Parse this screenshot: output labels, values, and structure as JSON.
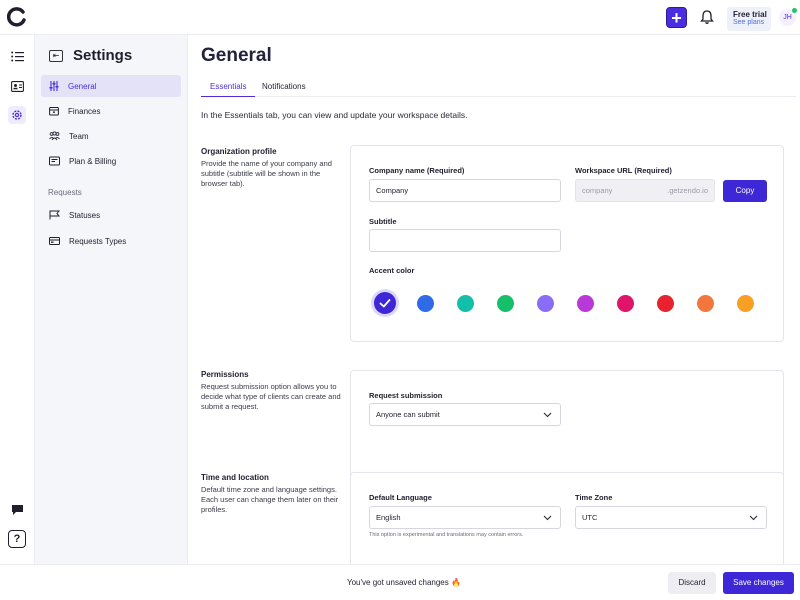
{
  "header": {
    "add_label": "+",
    "trial_title": "Free trial",
    "trial_link": "See plans",
    "avatar_initials": "JH"
  },
  "sidebar": {
    "title": "Settings",
    "items": [
      {
        "label": "General",
        "icon": "sliders-icon",
        "active": true
      },
      {
        "label": "Finances",
        "icon": "wallet-icon",
        "active": false
      },
      {
        "label": "Team",
        "icon": "team-icon",
        "active": false
      },
      {
        "label": "Plan & Billing",
        "icon": "billing-icon",
        "active": false
      }
    ],
    "section_label": "Requests",
    "request_items": [
      {
        "label": "Statuses",
        "icon": "flag-icon"
      },
      {
        "label": "Requests Types",
        "icon": "card-icon"
      }
    ]
  },
  "main": {
    "title": "General",
    "tabs": [
      {
        "label": "Essentials",
        "active": true
      },
      {
        "label": "Notifications",
        "active": false
      }
    ],
    "intro": "In the Essentials tab, you can view and update your workspace details.",
    "org": {
      "title": "Organization profile",
      "description": "Provide the name of your company and subtitle (subtitle will be shown in the browser tab).",
      "company_label": "Company name (Required)",
      "company_value": "Company",
      "url_label": "Workspace URL (Required)",
      "url_value": "company",
      "url_suffix": ".getzendo.io",
      "copy_label": "Copy",
      "subtitle_label": "Subtitle",
      "subtitle_value": "",
      "accent_label": "Accent color",
      "accent_colors": [
        "#3d27d6",
        "#2f6be6",
        "#10c0a8",
        "#16c06a",
        "#8b6cf4",
        "#b838d8",
        "#e0146a",
        "#e8222e",
        "#f2773f",
        "#f7a024"
      ],
      "accent_selected": 0
    },
    "permissions": {
      "title": "Permissions",
      "description": "Request submission option allows you to decide what type of clients can create and submit a request.",
      "submission_label": "Request submission",
      "submission_value": "Anyone can submit"
    },
    "time": {
      "title": "Time and location",
      "description": "Default time zone and language settings. Each user can change them later on their profiles.",
      "language_label": "Default Language",
      "language_value": "English",
      "language_note": "This option is experimental and translations may contain errors.",
      "timezone_label": "Time Zone",
      "timezone_value": "UTC"
    }
  },
  "footer": {
    "unsaved_text": "You've got unsaved changes",
    "unsaved_emoji": "🔥",
    "discard_label": "Discard",
    "save_label": "Save changes"
  },
  "colors": {
    "accent": "#3d27d6",
    "active_nav_bg": "#e3e2f7"
  }
}
